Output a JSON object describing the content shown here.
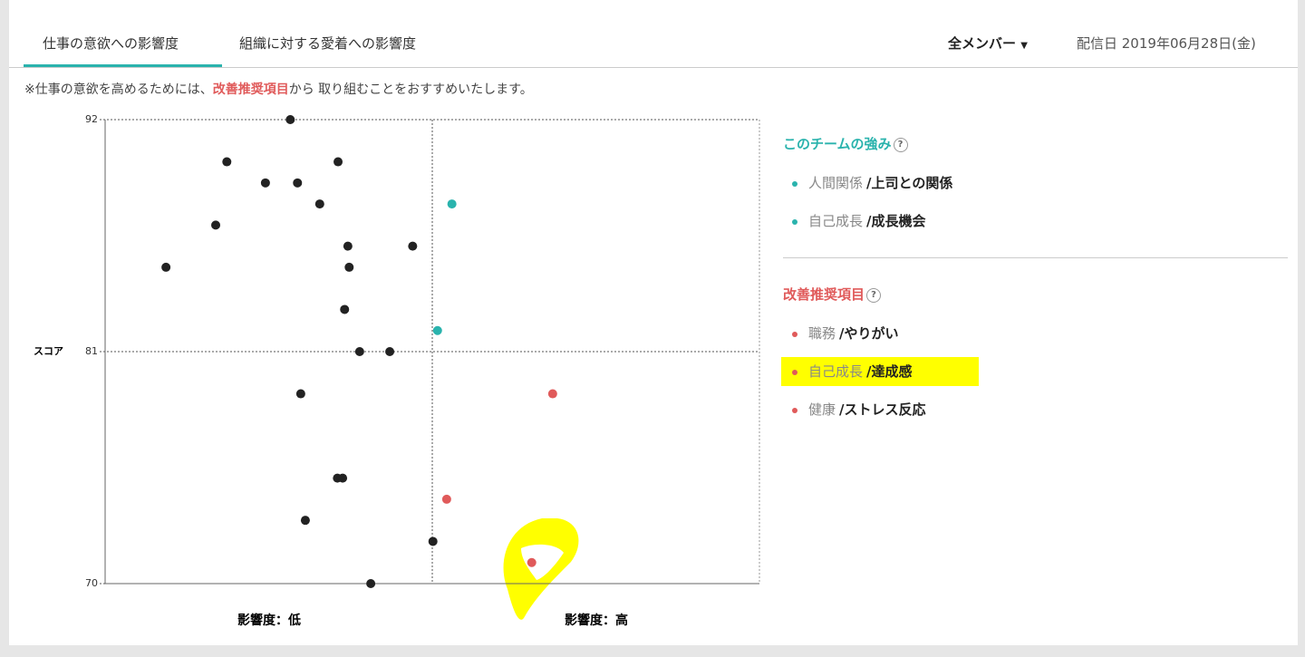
{
  "tabs": [
    "仕事の意欲への影響度",
    "組織に対する愛着への影響度"
  ],
  "filter": "全メンバー",
  "date": "配信日 2019年06月28日(金)",
  "note": {
    "before": "※仕事の意欲を高めるためには、",
    "highlight": "改善推奨項目",
    "after": "から 取り組むことをおすすめいたします。"
  },
  "chart_data": {
    "type": "scatter",
    "ylabel": "スコア",
    "x_axis_labels": [
      "影響度：低",
      "影響度：高"
    ],
    "xlim": [
      0,
      100
    ],
    "ylim": [
      70,
      92
    ],
    "yticks": [
      70,
      81,
      92
    ],
    "series": [
      {
        "color": "#222222",
        "x": [
          28.3,
          18.6,
          35.6,
          24.5,
          29.4,
          32.8,
          16.9,
          37.1,
          47.0,
          9.3,
          37.3,
          36.6,
          38.9,
          43.5,
          29.9,
          35.5,
          36.3,
          30.6,
          50.1,
          40.6
        ],
        "values": [
          92,
          90,
          90,
          89,
          89,
          88,
          87,
          86,
          86,
          85,
          85,
          83,
          81,
          81,
          79,
          75,
          75,
          73,
          72,
          70
        ]
      },
      {
        "color": "#2ab3ad",
        "x": [
          53.0,
          50.8
        ],
        "values": [
          88,
          82
        ]
      },
      {
        "color": "#e05a5a",
        "x": [
          68.4,
          52.2,
          65.2
        ],
        "values": [
          79,
          74,
          71
        ]
      }
    ]
  },
  "strengths": {
    "title": "このチームの強み",
    "items": [
      {
        "category": "人間関係",
        "item": "/上司との関係"
      },
      {
        "category": "自己成長",
        "item": "/成長機会"
      }
    ]
  },
  "improvements": {
    "title": "改善推奨項目",
    "items": [
      {
        "category": "職務",
        "item": "/やりがい"
      },
      {
        "category": "自己成長",
        "item": "/達成感"
      },
      {
        "category": "健康",
        "item": "/ストレス反応"
      }
    ]
  }
}
